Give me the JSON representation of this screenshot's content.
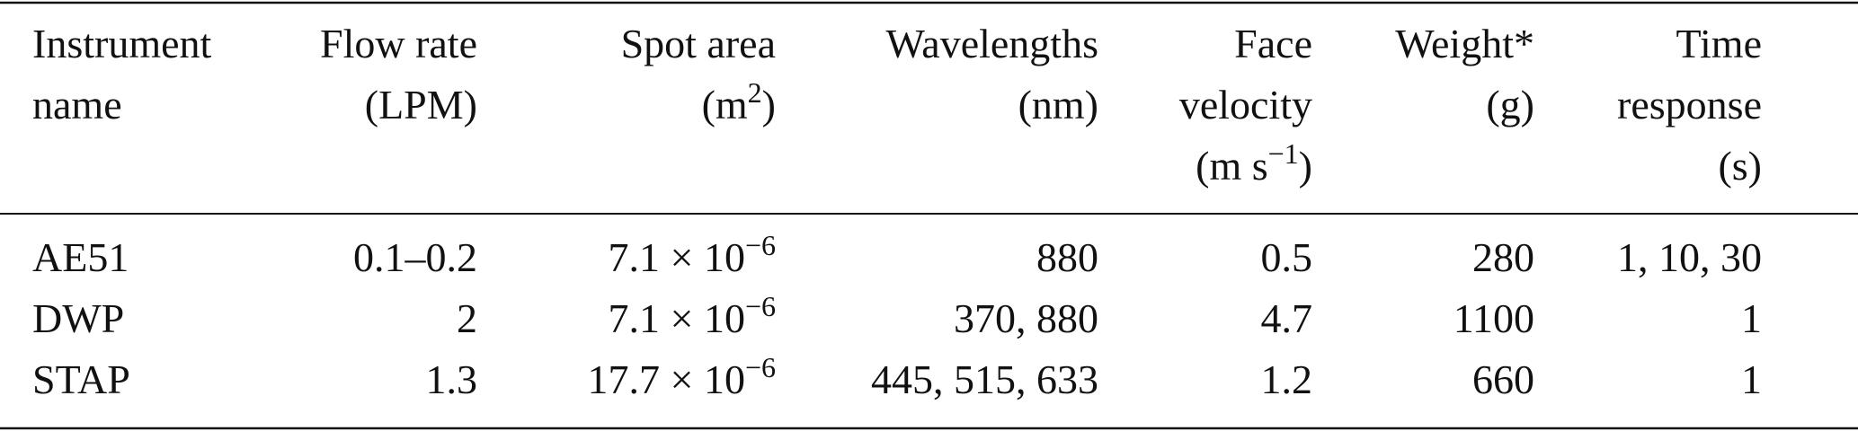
{
  "table": {
    "header": [
      [
        [
          "Instrument"
        ],
        [
          "name"
        ]
      ],
      [
        [
          "Flow rate"
        ],
        [
          "(LPM)"
        ]
      ],
      [
        [
          "Spot area"
        ],
        [
          {
            "base": "(m",
            "sup": "2",
            "after": ")"
          }
        ]
      ],
      [
        [
          "Wavelengths"
        ],
        [
          "(nm)"
        ]
      ],
      [
        [
          "Face"
        ],
        [
          "velocity"
        ],
        [
          {
            "base": "(m s",
            "sup": "−1",
            "after": ")"
          }
        ]
      ],
      [
        [
          "Weight*"
        ],
        [
          "(g)"
        ]
      ],
      [
        [
          "Time"
        ],
        [
          "response"
        ],
        [
          "(s)"
        ]
      ]
    ],
    "rows": [
      [
        "AE51",
        "0.1–0.2",
        {
          "base": "7.1 × 10",
          "sup": "−6"
        },
        "880",
        "0.5",
        "280",
        "1, 10, 30"
      ],
      [
        "DWP",
        "2",
        {
          "base": "7.1 × 10",
          "sup": "−6"
        },
        "370, 880",
        "4.7",
        "1100",
        "1"
      ],
      [
        "STAP",
        "1.3",
        {
          "base": "17.7 × 10",
          "sup": "−6"
        },
        "445, 515, 633",
        "1.2",
        "660",
        "1"
      ]
    ]
  }
}
